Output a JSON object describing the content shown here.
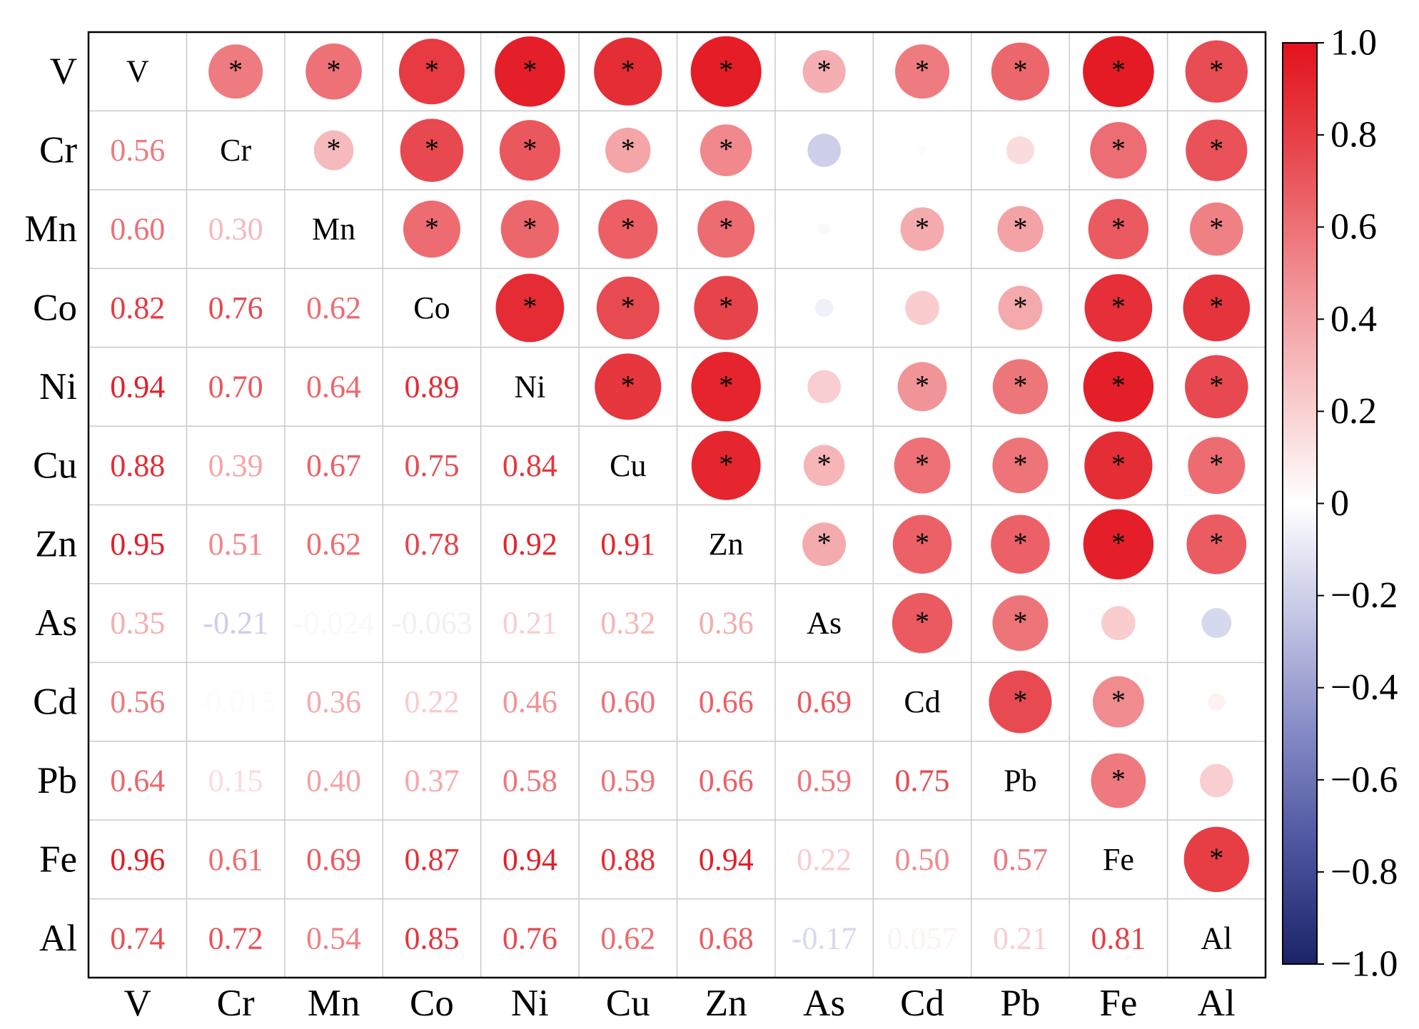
{
  "chart_data": {
    "type": "heatmap",
    "variables": [
      "V",
      "Cr",
      "Mn",
      "Co",
      "Ni",
      "Cu",
      "Zn",
      "As",
      "Cd",
      "Pb",
      "Fe",
      "Al"
    ],
    "values": [
      [],
      [
        0.56
      ],
      [
        0.6,
        0.3
      ],
      [
        0.82,
        0.76,
        0.62
      ],
      [
        0.94,
        0.7,
        0.64,
        0.89
      ],
      [
        0.88,
        0.39,
        0.67,
        0.75,
        0.84
      ],
      [
        0.95,
        0.51,
        0.62,
        0.78,
        0.92,
        0.91
      ],
      [
        0.35,
        -0.21,
        -0.024,
        -0.063,
        0.21,
        0.32,
        0.36
      ],
      [
        0.56,
        -0.015,
        0.36,
        0.22,
        0.46,
        0.6,
        0.66,
        0.69
      ],
      [
        0.64,
        0.15,
        0.4,
        0.37,
        0.58,
        0.59,
        0.66,
        0.59,
        0.75
      ],
      [
        0.96,
        0.61,
        0.69,
        0.87,
        0.94,
        0.88,
        0.94,
        0.22,
        0.5,
        0.57
      ],
      [
        0.74,
        0.72,
        0.54,
        0.85,
        0.76,
        0.62,
        0.68,
        -0.17,
        0.057,
        0.21,
        0.81
      ]
    ],
    "cell_labels": [
      [],
      [
        "0.56"
      ],
      [
        "0.60",
        "0.30"
      ],
      [
        "0.82",
        "0.76",
        "0.62"
      ],
      [
        "0.94",
        "0.70",
        "0.64",
        "0.89"
      ],
      [
        "0.88",
        "0.39",
        "0.67",
        "0.75",
        "0.84"
      ],
      [
        "0.95",
        "0.51",
        "0.62",
        "0.78",
        "0.92",
        "0.91"
      ],
      [
        "0.35",
        "-0.21",
        "-0.024",
        "-0.063",
        "0.21",
        "0.32",
        "0.36"
      ],
      [
        "0.56",
        "-0.015",
        "0.36",
        "0.22",
        "0.46",
        "0.60",
        "0.66",
        "0.69"
      ],
      [
        "0.64",
        "0.15",
        "0.40",
        "0.37",
        "0.58",
        "0.59",
        "0.66",
        "0.59",
        "0.75"
      ],
      [
        "0.96",
        "0.61",
        "0.69",
        "0.87",
        "0.94",
        "0.88",
        "0.94",
        "0.22",
        "0.50",
        "0.57"
      ],
      [
        "0.74",
        "0.72",
        "0.54",
        "0.85",
        "0.76",
        "0.62",
        "0.68",
        "-0.17",
        "0.057",
        "0.21",
        "0.81"
      ]
    ],
    "significant": [
      [
        true,
        true,
        true,
        true,
        true,
        true,
        true,
        true,
        true,
        true,
        true
      ],
      [
        true,
        true,
        true,
        true,
        true,
        false,
        false,
        false,
        true,
        true
      ],
      [
        true,
        true,
        true,
        true,
        false,
        true,
        true,
        true,
        true
      ],
      [
        true,
        true,
        true,
        false,
        false,
        true,
        true,
        true
      ],
      [
        true,
        true,
        false,
        true,
        true,
        true,
        true
      ],
      [
        true,
        true,
        true,
        true,
        true,
        true
      ],
      [
        true,
        true,
        true,
        true,
        true
      ],
      [
        true,
        true,
        false,
        false
      ],
      [
        true,
        true,
        false
      ],
      [
        true,
        false
      ],
      [
        true
      ],
      []
    ],
    "significance_marker": "*",
    "grid": true,
    "legend_position": "right",
    "colorbar": {
      "range": [
        -1,
        1
      ],
      "ticks": [
        1.0,
        0.8,
        0.6,
        0.4,
        0.2,
        0,
        -0.2,
        -0.4,
        -0.6,
        -0.8,
        -1.0
      ],
      "tick_labels": [
        "1.0",
        "0.8",
        "0.6",
        "0.4",
        "0.2",
        "0",
        "−0.2",
        "−0.4",
        "−0.6",
        "−0.8",
        "−1.0"
      ]
    },
    "colormap": [
      {
        "value": -1,
        "color": "#1b2468"
      },
      {
        "value": -0.75,
        "color": "#4b539d"
      },
      {
        "value": -0.5,
        "color": "#8489c5"
      },
      {
        "value": -0.25,
        "color": "#c3c5e4"
      },
      {
        "value": 0,
        "color": "#ffffff"
      },
      {
        "value": 0.25,
        "color": "#f8c5c7"
      },
      {
        "value": 0.5,
        "color": "#f08b8f"
      },
      {
        "value": 0.75,
        "color": "#e84a51"
      },
      {
        "value": 1,
        "color": "#e3121c"
      }
    ]
  }
}
